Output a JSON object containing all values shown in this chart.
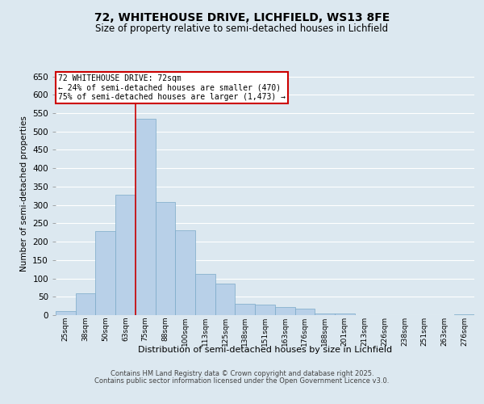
{
  "title_line1": "72, WHITEHOUSE DRIVE, LICHFIELD, WS13 8FE",
  "title_line2": "Size of property relative to semi-detached houses in Lichfield",
  "xlabel": "Distribution of semi-detached houses by size in Lichfield",
  "ylabel": "Number of semi-detached properties",
  "categories": [
    "25sqm",
    "38sqm",
    "50sqm",
    "63sqm",
    "75sqm",
    "88sqm",
    "100sqm",
    "113sqm",
    "125sqm",
    "138sqm",
    "151sqm",
    "163sqm",
    "176sqm",
    "188sqm",
    "201sqm",
    "213sqm",
    "226sqm",
    "238sqm",
    "251sqm",
    "263sqm",
    "276sqm"
  ],
  "values": [
    10,
    60,
    228,
    328,
    535,
    308,
    232,
    113,
    85,
    30,
    28,
    22,
    18,
    4,
    5,
    1,
    0,
    0,
    0,
    1,
    3
  ],
  "bar_color": "#b8d0e8",
  "bar_edge_color": "#7aaac8",
  "background_color": "#dce8f0",
  "grid_color": "#ffffff",
  "annotation_box_color": "#cc0000",
  "vline_color": "#cc0000",
  "vline_x": 3.5,
  "annotation_title": "72 WHITEHOUSE DRIVE: 72sqm",
  "annotation_line1": "← 24% of semi-detached houses are smaller (470)",
  "annotation_line2": "75% of semi-detached houses are larger (1,473) →",
  "ylim": [
    0,
    660
  ],
  "yticks": [
    0,
    50,
    100,
    150,
    200,
    250,
    300,
    350,
    400,
    450,
    500,
    550,
    600,
    650
  ],
  "footer_line1": "Contains HM Land Registry data © Crown copyright and database right 2025.",
  "footer_line2": "Contains public sector information licensed under the Open Government Licence v3.0."
}
